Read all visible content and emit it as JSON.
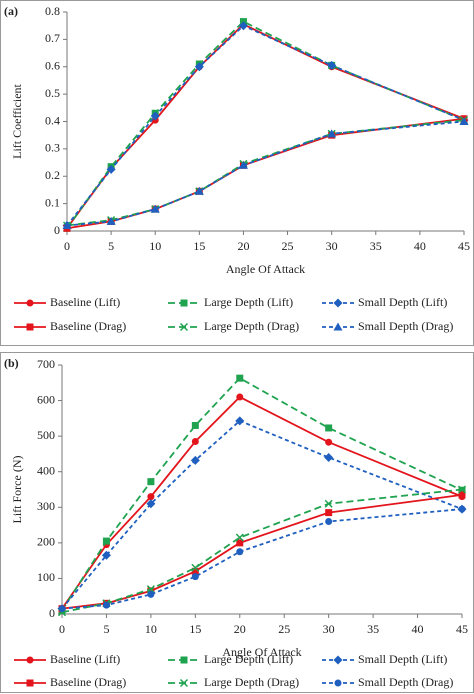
{
  "chart_data": [
    {
      "type": "line",
      "panel_label": "(a)",
      "y_label": "Lift Coefficient",
      "x_label": "Angle Of Attack",
      "x": [
        0,
        5,
        10,
        15,
        20,
        30,
        45
      ],
      "xlim": [
        0,
        45
      ],
      "xticks": [
        0,
        5,
        10,
        15,
        20,
        25,
        30,
        35,
        40,
        45
      ],
      "ylim": [
        0,
        0.8
      ],
      "yticks": [
        0,
        0.1,
        0.2,
        0.3,
        0.4,
        0.5,
        0.6,
        0.7,
        0.8
      ],
      "series": [
        {
          "name": "Baseline (Lift)",
          "color": "#e3141c",
          "marker": "circle",
          "dash": "solid",
          "values": [
            0.01,
            0.23,
            0.405,
            0.6,
            0.755,
            0.6,
            0.41
          ]
        },
        {
          "name": "Large Depth (Lift)",
          "color": "#1fa34f",
          "marker": "square",
          "dash": "long",
          "values": [
            0.01,
            0.235,
            0.43,
            0.61,
            0.765,
            0.605,
            0.405
          ]
        },
        {
          "name": "Small Depth (Lift)",
          "color": "#1f5fbf",
          "marker": "diamond",
          "dash": "short",
          "values": [
            0.02,
            0.225,
            0.42,
            0.6,
            0.75,
            0.605,
            0.405
          ]
        },
        {
          "name": "Baseline (Drag)",
          "color": "#e3141c",
          "marker": "square",
          "dash": "solid",
          "values": [
            0.01,
            0.035,
            0.08,
            0.145,
            0.24,
            0.35,
            0.41
          ]
        },
        {
          "name": "Large Depth (Drag)",
          "color": "#1fa34f",
          "marker": "x",
          "dash": "long",
          "values": [
            0.02,
            0.04,
            0.08,
            0.145,
            0.245,
            0.355,
            0.405
          ]
        },
        {
          "name": "Small Depth (Drag)",
          "color": "#1f5fbf",
          "marker": "triangle",
          "dash": "short",
          "values": [
            0.02,
            0.035,
            0.08,
            0.145,
            0.24,
            0.355,
            0.4
          ]
        }
      ]
    },
    {
      "type": "line",
      "panel_label": "(b)",
      "y_label": "Lift Force (N)",
      "x_label": "Angle Of Attack",
      "x": [
        0,
        5,
        10,
        15,
        20,
        30,
        45
      ],
      "xlim": [
        0,
        45
      ],
      "xticks": [
        0,
        5,
        10,
        15,
        20,
        25,
        30,
        35,
        40,
        45
      ],
      "ylim": [
        0,
        700
      ],
      "yticks": [
        0,
        100,
        200,
        300,
        400,
        500,
        600,
        700
      ],
      "series": [
        {
          "name": "Baseline (Lift)",
          "color": "#e3141c",
          "marker": "circle",
          "dash": "solid",
          "values": [
            15,
            195,
            330,
            485,
            610,
            483,
            330
          ]
        },
        {
          "name": "Large Depth (Lift)",
          "color": "#1fa34f",
          "marker": "square",
          "dash": "long",
          "values": [
            10,
            205,
            372,
            530,
            663,
            523,
            348
          ]
        },
        {
          "name": "Small Depth (Lift)",
          "color": "#1f5fbf",
          "marker": "diamond",
          "dash": "short",
          "values": [
            15,
            165,
            310,
            432,
            543,
            440,
            295
          ]
        },
        {
          "name": "Baseline (Drag)",
          "color": "#e3141c",
          "marker": "square",
          "dash": "solid",
          "values": [
            15,
            30,
            65,
            120,
            200,
            285,
            335
          ]
        },
        {
          "name": "Large Depth (Drag)",
          "color": "#1fa34f",
          "marker": "x",
          "dash": "long",
          "values": [
            5,
            30,
            70,
            130,
            215,
            310,
            350
          ]
        },
        {
          "name": "Small Depth (Drag)",
          "color": "#1f5fbf",
          "marker": "circle",
          "dash": "short",
          "values": [
            15,
            25,
            55,
            105,
            175,
            260,
            295
          ]
        }
      ]
    }
  ]
}
